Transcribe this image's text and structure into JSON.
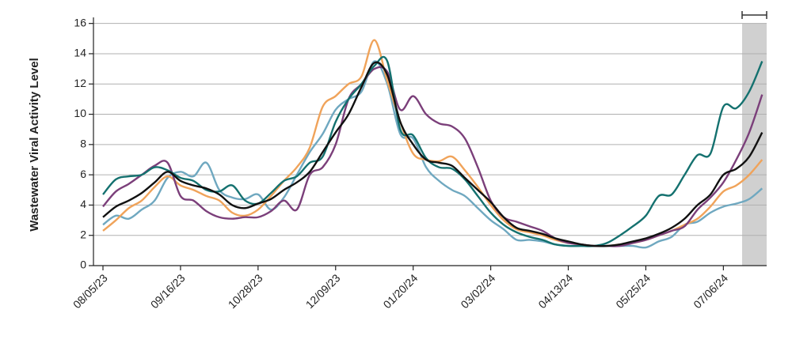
{
  "chart_data": {
    "type": "line",
    "y_label": "Wastewater Viral Activity Level",
    "categories": [
      "08/05/23",
      null,
      null,
      null,
      null,
      null,
      "09/16/23",
      null,
      null,
      null,
      null,
      null,
      "10/28/23",
      null,
      null,
      null,
      null,
      null,
      "12/09/23",
      null,
      null,
      null,
      null,
      null,
      "01/20/24",
      null,
      null,
      null,
      null,
      null,
      "03/02/24",
      null,
      null,
      null,
      null,
      null,
      "04/13/24",
      null,
      null,
      null,
      null,
      null,
      "05/25/24",
      null,
      null,
      null,
      null,
      null,
      "07/06/24",
      null,
      null,
      null
    ],
    "ylim": [
      0,
      16.4
    ],
    "yticks": [
      0,
      2,
      4,
      6,
      8,
      10,
      12,
      14,
      16
    ],
    "grid": true,
    "series": [
      {
        "color": "#6fa8c0",
        "values": [
          2.7,
          3.3,
          3.1,
          3.7,
          4.3,
          5.8,
          6.2,
          5.9,
          6.8,
          5.0,
          4.5,
          4.4,
          4.7,
          3.7,
          4.5,
          6.0,
          7.5,
          8.7,
          10.3,
          11.0,
          11.5,
          13.5,
          12.0,
          8.7,
          8.4,
          6.5,
          5.6,
          5.0,
          4.6,
          3.8,
          3.0,
          2.4,
          1.7,
          1.7,
          1.6,
          1.4,
          1.3,
          1.3,
          1.3,
          1.3,
          1.3,
          1.3,
          1.2,
          1.6,
          1.9,
          2.7,
          2.9,
          3.5,
          3.9,
          4.1,
          4.4,
          5.1
        ]
      },
      {
        "color": "#f0a35a",
        "values": [
          2.3,
          3.0,
          3.8,
          4.3,
          5.2,
          5.9,
          5.3,
          5.0,
          4.6,
          4.3,
          3.5,
          3.3,
          3.7,
          4.6,
          5.6,
          6.5,
          7.8,
          10.5,
          11.2,
          12.0,
          12.5,
          14.9,
          12.2,
          9.5,
          7.4,
          7.0,
          6.9,
          7.2,
          6.3,
          5.2,
          4.0,
          3.0,
          2.4,
          2.2,
          2.0,
          1.7,
          1.5,
          1.4,
          1.3,
          1.3,
          1.4,
          1.5,
          1.7,
          2.0,
          2.3,
          2.7,
          3.1,
          3.9,
          4.9,
          5.3,
          6.0,
          7.0
        ]
      },
      {
        "color": "#7b3f7a",
        "values": [
          3.9,
          4.9,
          5.4,
          6.0,
          6.6,
          6.8,
          4.6,
          4.3,
          3.6,
          3.2,
          3.1,
          3.2,
          3.2,
          3.6,
          4.3,
          3.7,
          6.0,
          6.5,
          8.0,
          11.0,
          12.0,
          13.0,
          12.8,
          10.3,
          11.2,
          10.0,
          9.4,
          9.2,
          8.4,
          6.5,
          4.3,
          3.2,
          2.9,
          2.6,
          2.3,
          1.8,
          1.5,
          1.4,
          1.3,
          1.3,
          1.3,
          1.5,
          1.7,
          2.0,
          2.3,
          2.6,
          3.7,
          4.5,
          5.5,
          7.0,
          8.8,
          11.3
        ]
      },
      {
        "color": "#14716f",
        "values": [
          4.7,
          5.7,
          5.9,
          6.0,
          6.5,
          6.3,
          5.8,
          5.6,
          5.0,
          4.9,
          5.3,
          4.3,
          4.1,
          4.8,
          5.6,
          5.9,
          6.8,
          7.2,
          9.5,
          11.0,
          12.0,
          13.2,
          13.5,
          9.0,
          8.6,
          7.1,
          6.5,
          6.4,
          5.7,
          4.6,
          3.5,
          2.7,
          2.2,
          1.9,
          1.7,
          1.4,
          1.3,
          1.3,
          1.3,
          1.5,
          2.0,
          2.6,
          3.3,
          4.6,
          4.7,
          6.0,
          7.3,
          7.4,
          10.5,
          10.4,
          11.5,
          13.5
        ]
      },
      {
        "color": "#111111",
        "values": [
          3.2,
          3.9,
          4.3,
          4.8,
          5.5,
          6.2,
          5.6,
          5.3,
          5.1,
          4.7,
          4.0,
          3.8,
          4.1,
          4.4,
          5.0,
          5.5,
          6.2,
          7.5,
          8.8,
          10.0,
          11.8,
          13.4,
          12.6,
          9.5,
          8.0,
          7.0,
          6.8,
          6.6,
          5.8,
          5.0,
          4.2,
          3.2,
          2.5,
          2.3,
          2.1,
          1.8,
          1.6,
          1.4,
          1.3,
          1.3,
          1.4,
          1.6,
          1.8,
          2.1,
          2.5,
          3.1,
          4.0,
          4.7,
          6.0,
          6.4,
          7.2,
          8.8
        ]
      }
    ]
  }
}
